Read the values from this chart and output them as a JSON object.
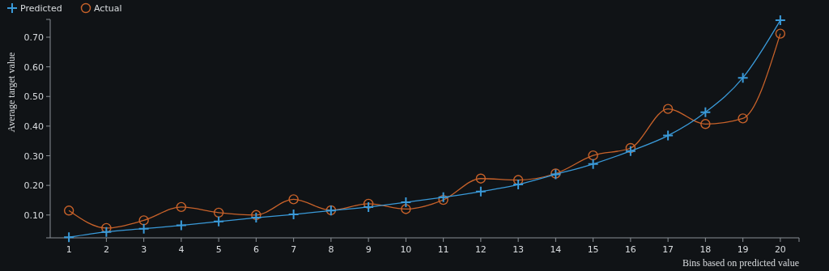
{
  "chart_data": {
    "type": "line",
    "xlabel": "Bins based on predicted value",
    "ylabel": "Average target value",
    "x": [
      1,
      2,
      3,
      4,
      5,
      6,
      7,
      8,
      9,
      10,
      11,
      12,
      13,
      14,
      15,
      16,
      17,
      18,
      19,
      20
    ],
    "xlim": [
      0.5,
      20.5
    ],
    "xticks": [
      1,
      2,
      3,
      4,
      5,
      6,
      7,
      8,
      9,
      10,
      11,
      12,
      13,
      14,
      15,
      16,
      17,
      18,
      19,
      20
    ],
    "ylim": [
      0.023,
      0.76
    ],
    "yticks": [
      {
        "value": 0.1,
        "label": "0.10"
      },
      {
        "value": 0.2,
        "label": "0.20"
      },
      {
        "value": 0.3,
        "label": "0.30"
      },
      {
        "value": 0.4,
        "label": "0.40"
      },
      {
        "value": 0.5,
        "label": "0.50"
      },
      {
        "value": 0.6,
        "label": "0.60"
      },
      {
        "value": 0.7,
        "label": "0.70"
      }
    ],
    "legend": "top left",
    "grid": false,
    "series": [
      {
        "name": "Predicted",
        "color": "#3a9ad9",
        "marker": "cross",
        "values": [
          0.025,
          0.043,
          0.054,
          0.065,
          0.078,
          0.091,
          0.102,
          0.115,
          0.127,
          0.143,
          0.16,
          0.179,
          0.203,
          0.237,
          0.272,
          0.316,
          0.368,
          0.447,
          0.563,
          0.757
        ]
      },
      {
        "name": "Actual",
        "color": "#c8622a",
        "marker": "circle",
        "values": [
          0.115,
          0.056,
          0.082,
          0.127,
          0.108,
          0.1,
          0.153,
          0.116,
          0.138,
          0.12,
          0.151,
          0.223,
          0.218,
          0.24,
          0.301,
          0.326,
          0.458,
          0.407,
          0.426,
          0.712
        ]
      }
    ]
  }
}
